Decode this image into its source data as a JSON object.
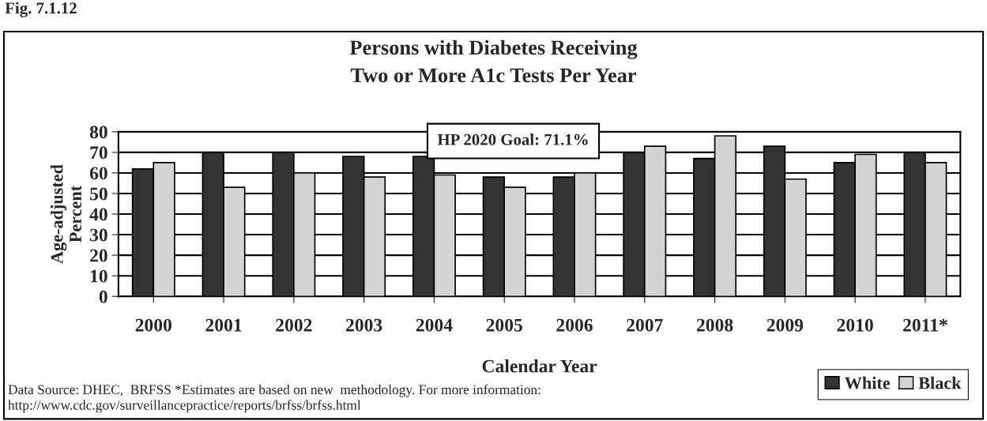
{
  "chart_data": {
    "type": "bar",
    "title": "Persons with Diabetes Receiving\nTwo or More A1c Tests Per Year",
    "xlabel": "Calendar Year",
    "ylabel": "Age-adjusted\nPercent",
    "categories": [
      "2000",
      "2001",
      "2002",
      "2003",
      "2004",
      "2005",
      "2006",
      "2007",
      "2008",
      "2009",
      "2010",
      "2011*"
    ],
    "series": [
      {
        "name": "White",
        "color": "#333333",
        "values": [
          62,
          70,
          70,
          68,
          68,
          58,
          58,
          70,
          67,
          73,
          65,
          70
        ]
      },
      {
        "name": "Black",
        "color": "#d4d4d4",
        "values": [
          65,
          53,
          60,
          58,
          59,
          53,
          60,
          73,
          78,
          57,
          69,
          65
        ]
      }
    ],
    "ylim": [
      0,
      80
    ],
    "yticks": [
      0,
      10,
      20,
      30,
      40,
      50,
      60,
      70,
      80
    ],
    "grid": "y",
    "legend": "bottom right",
    "annotations": [
      "Fig. 7.1.12",
      "HP 2020 Goal: 71.1%",
      "Data Source: DHEC,  BRFSS *Estimates are based on new  methodology. For more information:\nhttp://www.cdc.gov/surveillancepractice/reports/brfss/brfss.html"
    ]
  }
}
